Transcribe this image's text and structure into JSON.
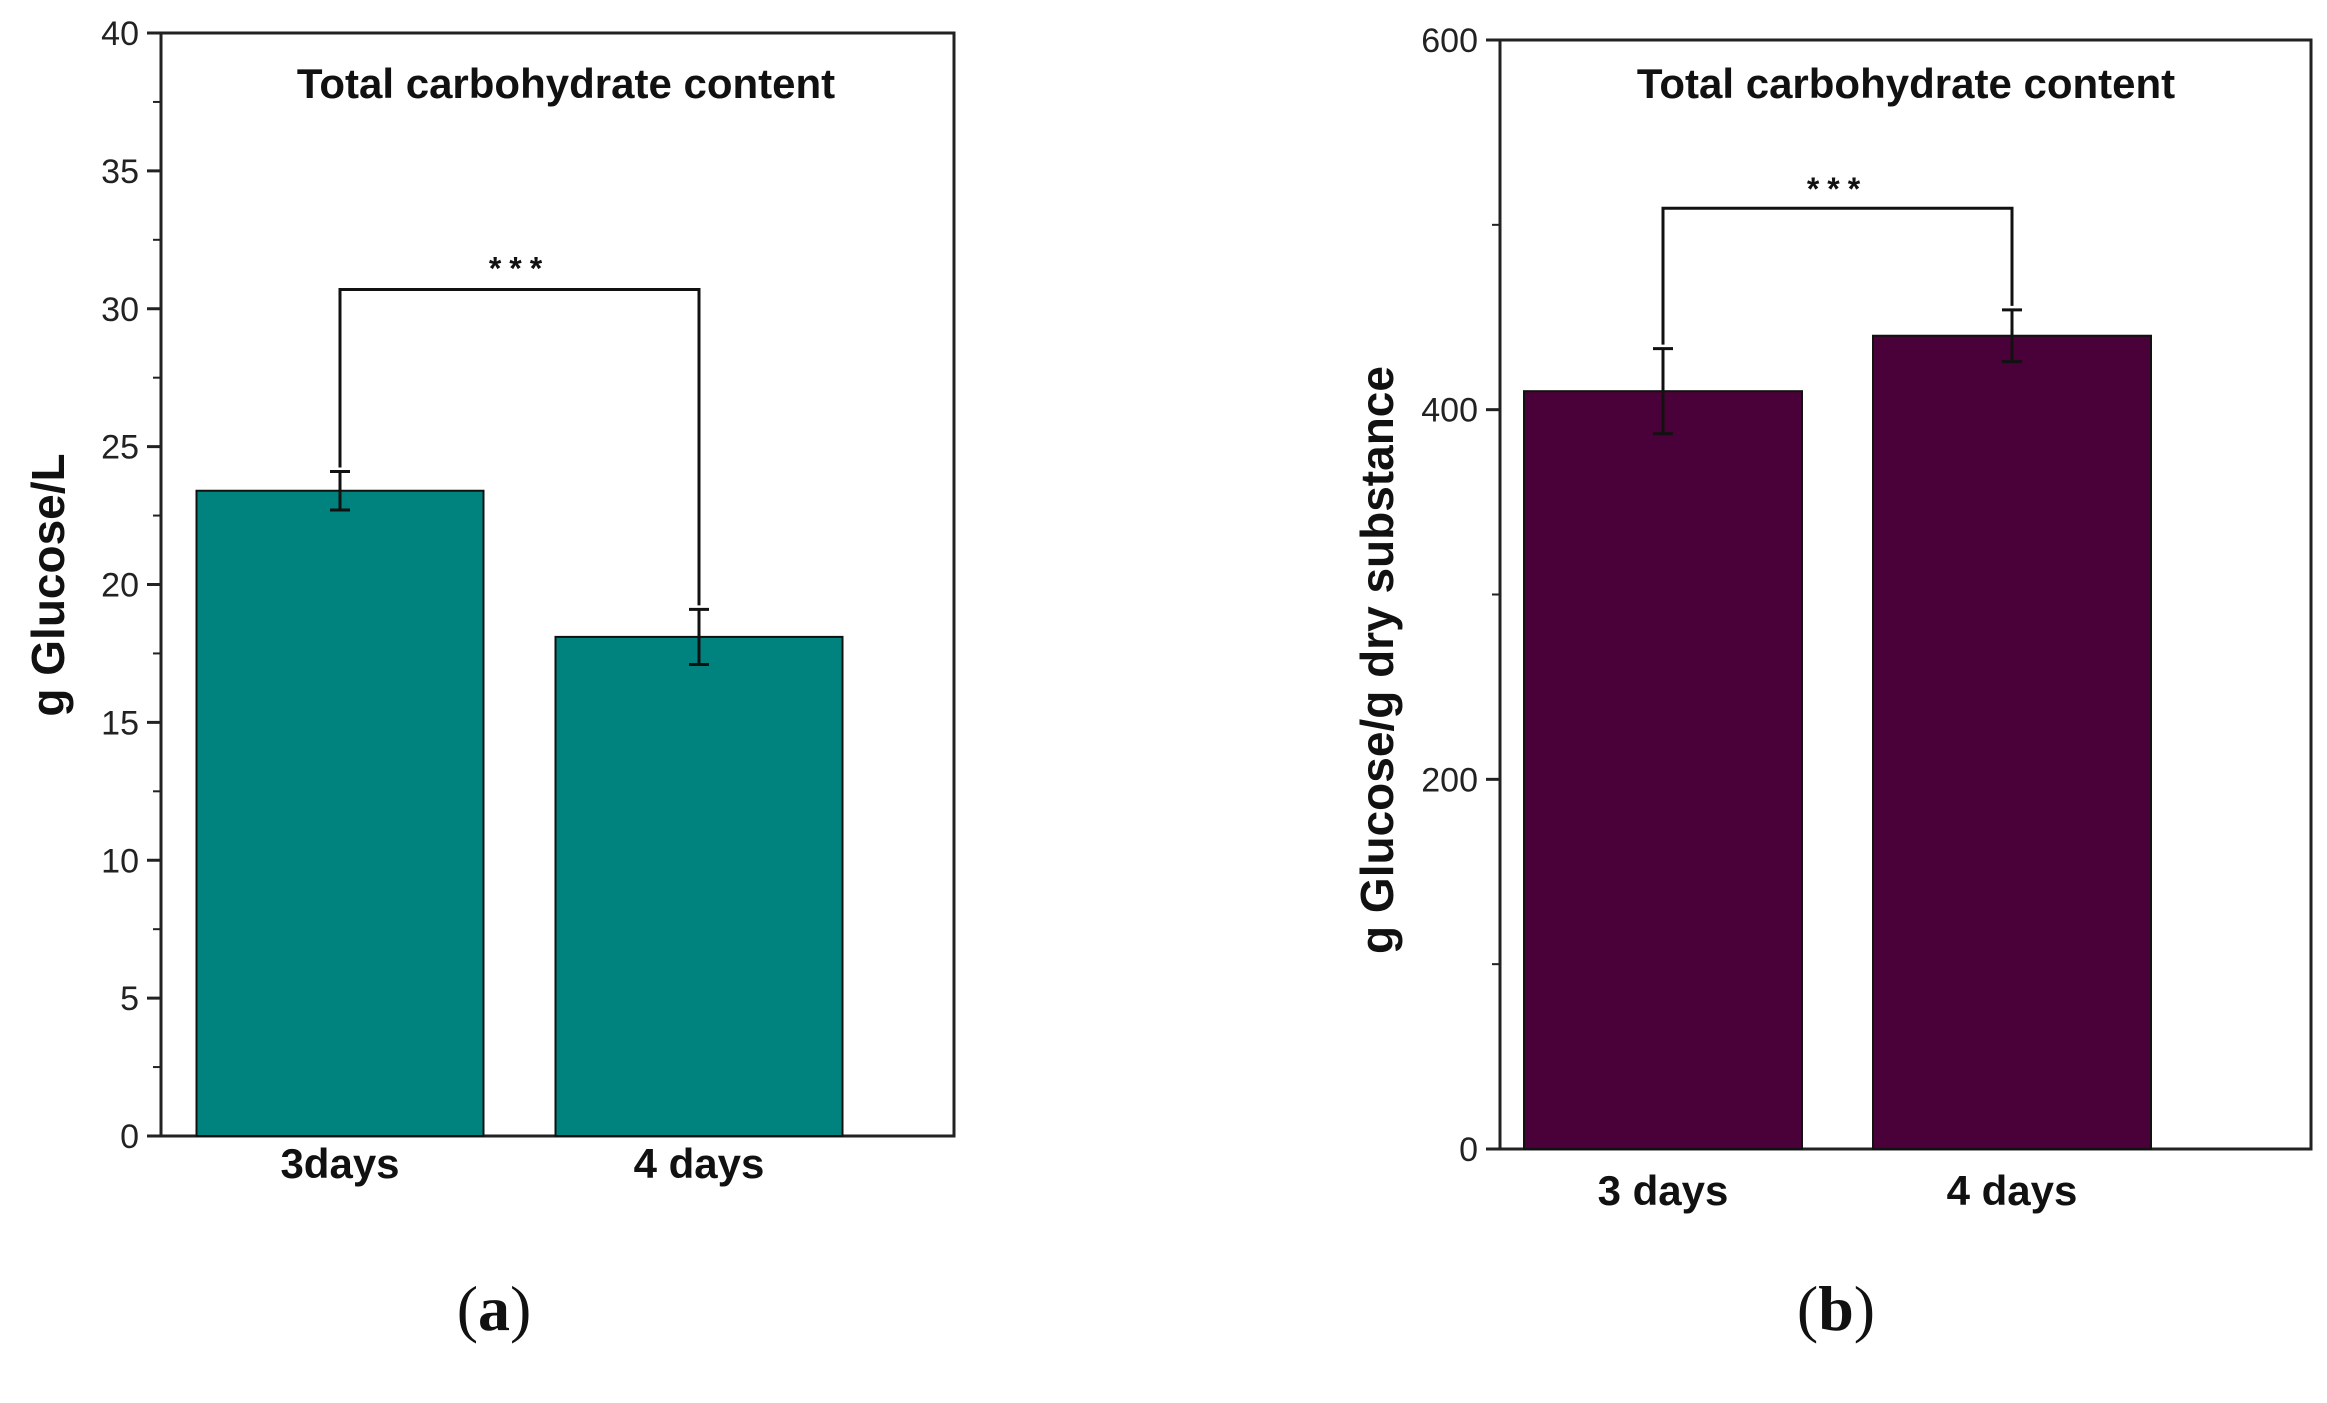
{
  "chart_data": [
    {
      "type": "bar",
      "panel_label": "a",
      "title": "Total carbohydrate content",
      "xlabel": "",
      "ylabel": "g Glucose/L",
      "ylim": [
        0,
        40
      ],
      "yticks": [
        0,
        5,
        10,
        15,
        20,
        25,
        30,
        35,
        40
      ],
      "categories": [
        "3days",
        "4 days"
      ],
      "values": [
        23.4,
        18.1
      ],
      "errors": [
        0.7,
        1.0
      ],
      "bar_color": "#00827f",
      "significance": {
        "between": [
          0,
          1
        ],
        "label": "***",
        "y": 30.7
      }
    },
    {
      "type": "bar",
      "panel_label": "b",
      "title": "Total carbohydrate content",
      "xlabel": "",
      "ylabel": "g Glucose/g dry substance",
      "ylim": [
        0,
        600
      ],
      "yticks": [
        0,
        200,
        400,
        600
      ],
      "categories": [
        "3 days",
        "4 days"
      ],
      "values": [
        410,
        440
      ],
      "errors": [
        23,
        14
      ],
      "bar_color": "#4a0038",
      "significance": {
        "between": [
          0,
          1
        ],
        "label": "***",
        "y": 509
      }
    }
  ]
}
